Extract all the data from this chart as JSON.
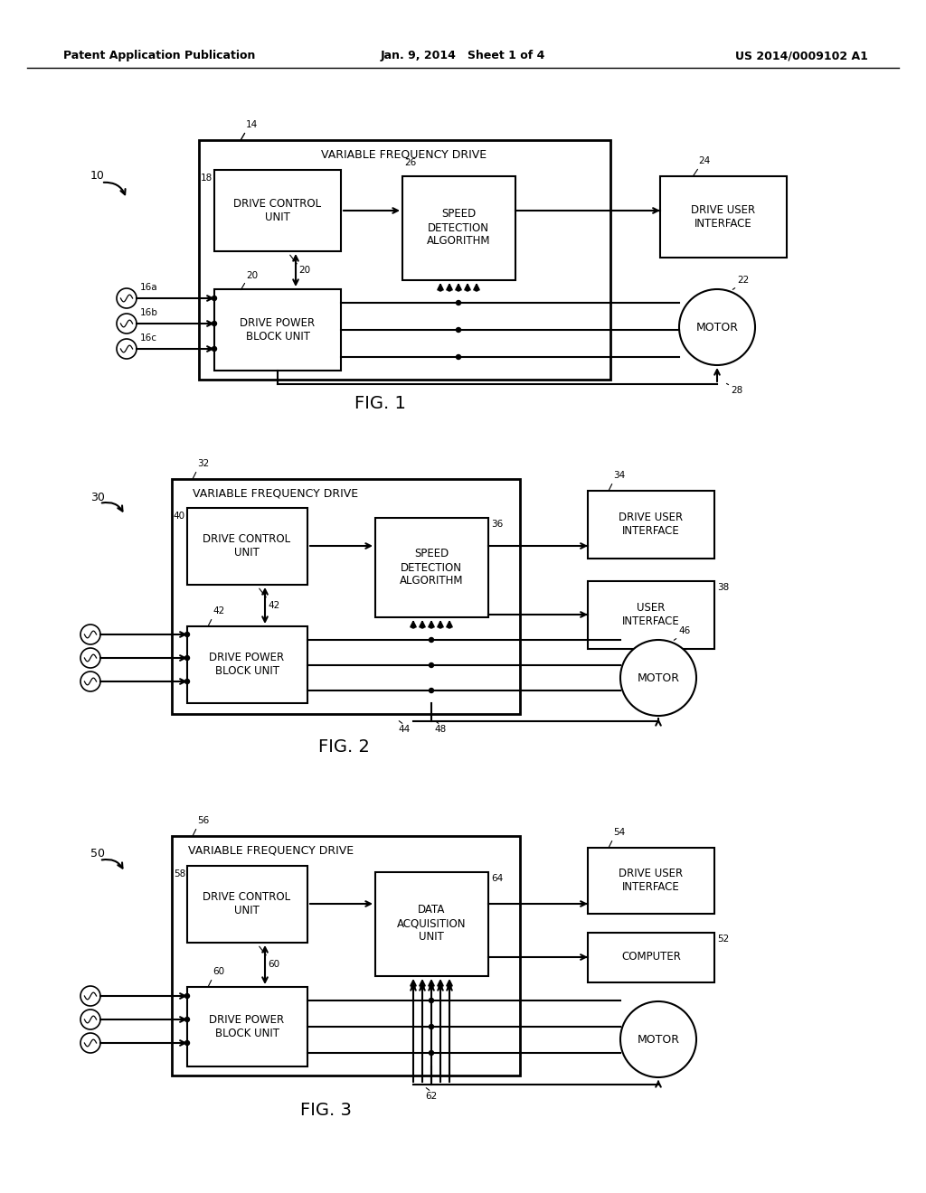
{
  "bg_color": "#ffffff",
  "header_left": "Patent Application Publication",
  "header_center": "Jan. 9, 2014   Sheet 1 of 4",
  "header_right": "US 2014/0009102 A1",
  "fig1": {
    "label": "10",
    "vfd_label": "14",
    "vfd_title": "VARIABLE FREQUENCY DRIVE",
    "dcu_label": "18",
    "dcu_text": "DRIVE CONTROL\nUNIT",
    "sda_label": "26",
    "sda_text": "SPEED\nDETECTION\nALGORITHM",
    "dpbu_label": "20",
    "dpbu_text": "DRIVE POWER\nBLOCK UNIT",
    "dui_label": "24",
    "dui_text": "DRIVE USER\nINTERFACE",
    "motor_label": "22",
    "motor_text": "MOTOR",
    "ac_labels": [
      "16a",
      "16b",
      "16c"
    ],
    "fig_label": "FIG. 1",
    "arrow_label": "28"
  },
  "fig2": {
    "label": "30",
    "vfd_label": "32",
    "vfd_title": "VARIABLE FREQUENCY DRIVE",
    "dcu_label": "40",
    "dcu_text": "DRIVE CONTROL\nUNIT",
    "sda_label": "36",
    "sda_text": "SPEED\nDETECTION\nALGORITHM",
    "dpbu_label": "42",
    "dpbu_text": "DRIVE POWER\nBLOCK UNIT",
    "dui_label": "34",
    "dui_text": "DRIVE USER\nINTERFACE",
    "ui_label": "38",
    "ui_text": "USER\nINTERFACE",
    "motor_label": "46",
    "motor_text": "MOTOR",
    "fig_label": "FIG. 2",
    "arrow_label1": "44",
    "arrow_label2": "48"
  },
  "fig3": {
    "label": "50",
    "vfd_label": "56",
    "vfd_title": "VARIABLE FREQUENCY DRIVE",
    "dcu_label": "58",
    "dcu_text": "DRIVE CONTROL\nUNIT",
    "dau_label": "64",
    "dau_text": "DATA\nACQUISITION\nUNIT",
    "dpbu_label": "60",
    "dpbu_text": "DRIVE POWER\nBLOCK UNIT",
    "dui_label": "54",
    "dui_text": "DRIVE USER\nINTERFACE",
    "comp_label": "52",
    "comp_text": "COMPUTER",
    "motor_text": "MOTOR",
    "fig_label": "FIG. 3",
    "arrow_label": "62"
  }
}
